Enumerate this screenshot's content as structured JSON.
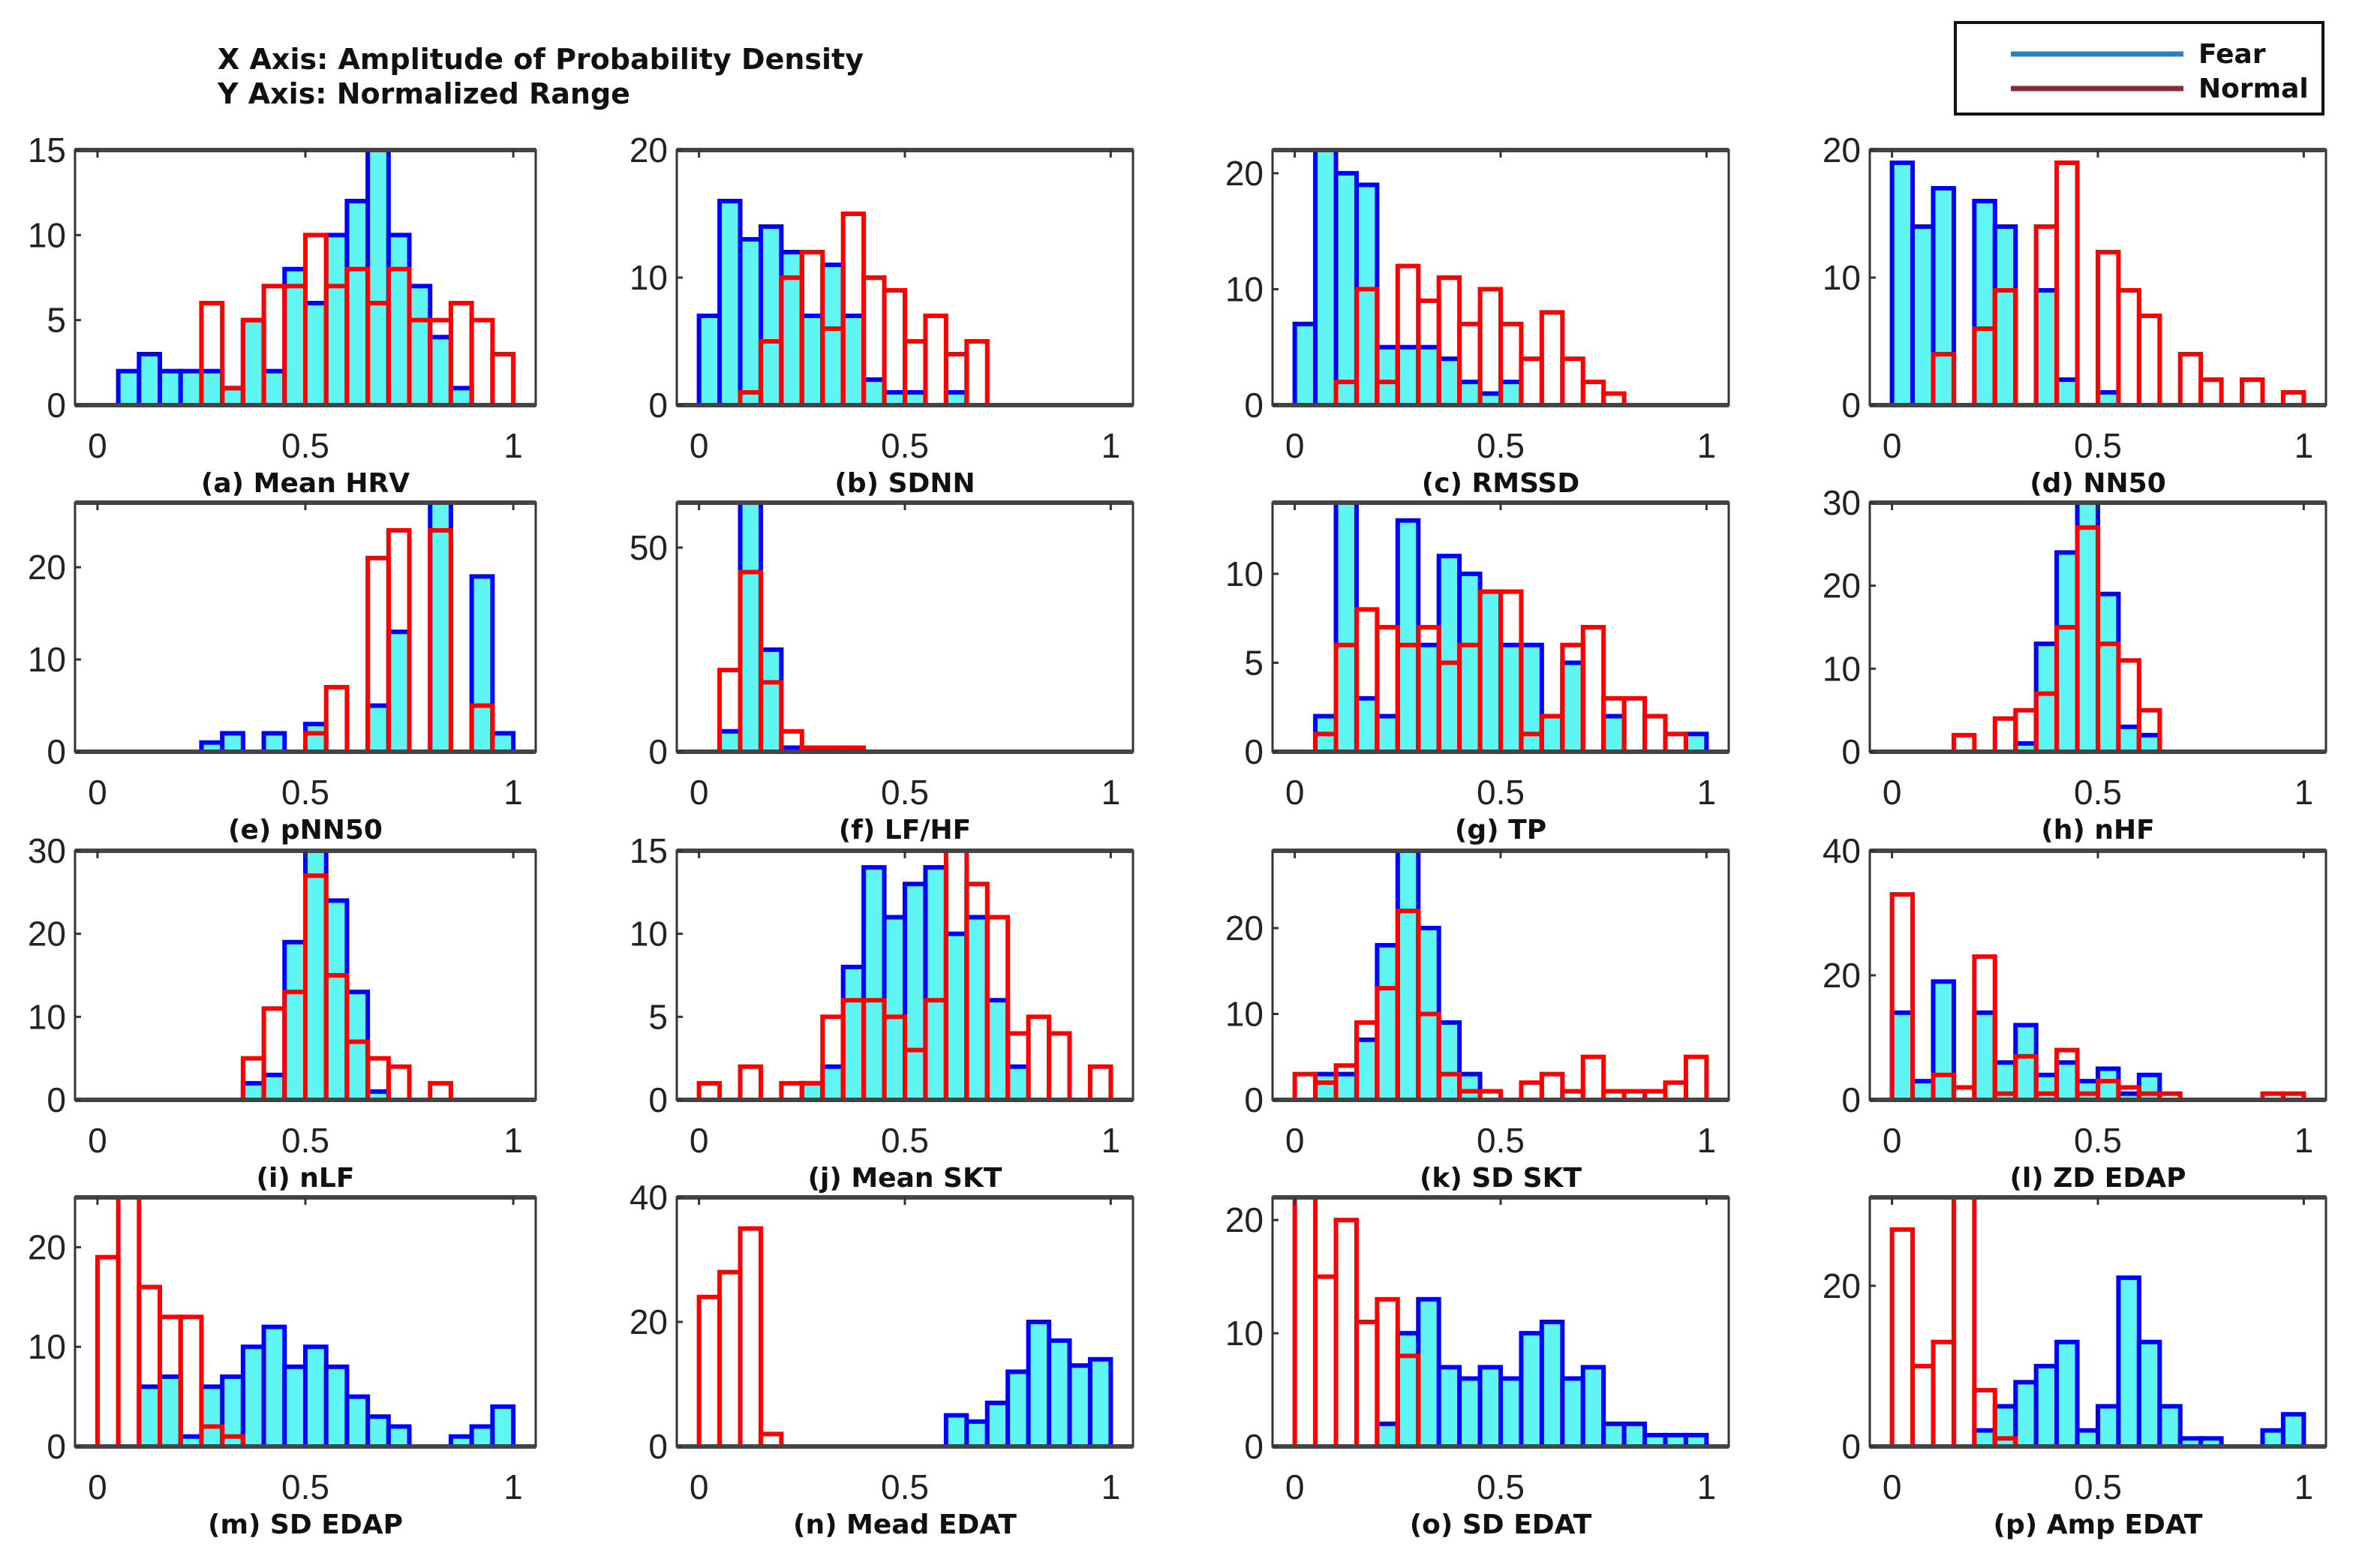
{
  "header": {
    "x_axis_note": "X Axis: Amplitude of Probability Density",
    "y_axis_note": "Y Axis: Normalized Range"
  },
  "legend": [
    {
      "label": "Fear",
      "color": "#2a7fc0"
    },
    {
      "label": "Normal",
      "color": "#8e2a35"
    }
  ],
  "colors": {
    "fear_fill": "#5ff5f2",
    "fear_edge": "#0000ff",
    "normal_edge": "#ff0000"
  },
  "chart_data": [
    {
      "type": "bar",
      "title": "(a) Mean HRV",
      "bins": 20,
      "xlim": [
        0,
        1
      ],
      "xticks": [
        "0",
        "0.5",
        "1"
      ],
      "ylim": [
        0,
        15
      ],
      "yticks": [
        0,
        5,
        10,
        15
      ],
      "series": [
        {
          "name": "Fear",
          "values": [
            0,
            2,
            3,
            2,
            2,
            2,
            1,
            5,
            2,
            8,
            6,
            10,
            12,
            15,
            10,
            7,
            4,
            1,
            0,
            0
          ]
        },
        {
          "name": "Normal",
          "values": [
            0,
            0,
            0,
            0,
            0,
            6,
            1,
            5,
            7,
            7,
            10,
            7,
            8,
            6,
            8,
            5,
            5,
            6,
            5,
            3
          ]
        }
      ]
    },
    {
      "type": "bar",
      "title": "(b) SDNN",
      "bins": 20,
      "xlim": [
        0,
        1
      ],
      "xticks": [
        "0",
        "0.5",
        "1"
      ],
      "ylim": [
        0,
        20
      ],
      "yticks": [
        0,
        10,
        20
      ],
      "series": [
        {
          "name": "Fear",
          "values": [
            7,
            16,
            13,
            14,
            12,
            7,
            11,
            7,
            2,
            1,
            1,
            0,
            1,
            0,
            0,
            0,
            0,
            0,
            0,
            0
          ]
        },
        {
          "name": "Normal",
          "values": [
            0,
            0,
            1,
            5,
            10,
            12,
            6,
            15,
            10,
            9,
            5,
            7,
            4,
            5,
            0,
            0,
            0,
            0,
            0,
            0
          ]
        }
      ]
    },
    {
      "type": "bar",
      "title": "(c) RMSSD",
      "bins": 20,
      "xlim": [
        0,
        1
      ],
      "xticks": [
        "0",
        "0.5",
        "1"
      ],
      "ylim": [
        0,
        22
      ],
      "yticks": [
        0,
        10,
        20
      ],
      "series": [
        {
          "name": "Fear",
          "values": [
            7,
            22,
            20,
            19,
            5,
            5,
            5,
            4,
            2,
            1,
            2,
            0,
            0,
            0,
            0,
            0,
            0,
            0,
            0,
            0
          ]
        },
        {
          "name": "Normal",
          "values": [
            0,
            0,
            2,
            10,
            2,
            12,
            9,
            11,
            7,
            10,
            7,
            4,
            8,
            4,
            2,
            1,
            0,
            0,
            0,
            0
          ]
        }
      ]
    },
    {
      "type": "bar",
      "title": "(d) NN50",
      "bins": 20,
      "xlim": [
        0,
        1
      ],
      "xticks": [
        "0",
        "0.5",
        "1"
      ],
      "ylim": [
        0,
        20
      ],
      "yticks": [
        0,
        10,
        20
      ],
      "series": [
        {
          "name": "Fear",
          "values": [
            19,
            14,
            17,
            0,
            16,
            14,
            0,
            9,
            2,
            0,
            1,
            0,
            0,
            0,
            0,
            0,
            0,
            0,
            0,
            0
          ]
        },
        {
          "name": "Normal",
          "values": [
            0,
            0,
            4,
            0,
            6,
            9,
            0,
            14,
            19,
            0,
            12,
            9,
            7,
            0,
            4,
            2,
            0,
            2,
            0,
            1
          ]
        }
      ]
    },
    {
      "type": "bar",
      "title": "(e) pNN50",
      "bins": 20,
      "xlim": [
        0,
        1
      ],
      "xticks": [
        "0",
        "0.5",
        "1"
      ],
      "ylim": [
        0,
        27
      ],
      "yticks": [
        0,
        10,
        20
      ],
      "series": [
        {
          "name": "Fear",
          "values": [
            0,
            0,
            0,
            0,
            0,
            1,
            2,
            0,
            2,
            0,
            3,
            0,
            0,
            5,
            13,
            0,
            27,
            0,
            19,
            2
          ]
        },
        {
          "name": "Normal",
          "values": [
            0,
            0,
            0,
            0,
            0,
            0,
            0,
            0,
            0,
            0,
            2,
            7,
            0,
            21,
            24,
            0,
            24,
            0,
            5,
            0
          ]
        }
      ]
    },
    {
      "type": "bar",
      "title": "(f) LF/HF",
      "bins": 20,
      "xlim": [
        0,
        1
      ],
      "xticks": [
        "0",
        "0.5",
        "1"
      ],
      "ylim": [
        0,
        61
      ],
      "yticks": [
        0,
        50
      ],
      "series": [
        {
          "name": "Fear",
          "values": [
            0,
            5,
            61,
            25,
            1,
            0,
            0,
            0,
            0,
            0,
            0,
            0,
            0,
            0,
            0,
            0,
            0,
            0,
            0,
            0
          ]
        },
        {
          "name": "Normal",
          "values": [
            0,
            20,
            44,
            17,
            5,
            1,
            1,
            1,
            0,
            0,
            0,
            0,
            0,
            0,
            0,
            0,
            0,
            0,
            0,
            0
          ]
        }
      ]
    },
    {
      "type": "bar",
      "title": "(g) TP",
      "bins": 20,
      "xlim": [
        0,
        1
      ],
      "xticks": [
        "0",
        "0.5",
        "1"
      ],
      "ylim": [
        0,
        14
      ],
      "yticks": [
        0,
        5,
        10
      ],
      "series": [
        {
          "name": "Fear",
          "values": [
            0,
            2,
            14,
            3,
            2,
            13,
            6,
            11,
            10,
            9,
            6,
            6,
            2,
            5,
            0,
            2,
            0,
            0,
            0,
            1
          ]
        },
        {
          "name": "Normal",
          "values": [
            0,
            1,
            6,
            8,
            7,
            6,
            7,
            5,
            6,
            9,
            9,
            1,
            2,
            6,
            7,
            3,
            3,
            2,
            1,
            0
          ]
        }
      ]
    },
    {
      "type": "bar",
      "title": "(h) nHF",
      "bins": 20,
      "xlim": [
        0,
        1
      ],
      "xticks": [
        "0",
        "0.5",
        "1"
      ],
      "ylim": [
        0,
        30
      ],
      "yticks": [
        0,
        10,
        20,
        30
      ],
      "series": [
        {
          "name": "Fear",
          "values": [
            0,
            0,
            0,
            0,
            0,
            0,
            1,
            13,
            24,
            30,
            19,
            3,
            2,
            0,
            0,
            0,
            0,
            0,
            0,
            0
          ]
        },
        {
          "name": "Normal",
          "values": [
            0,
            0,
            0,
            2,
            0,
            4,
            5,
            7,
            15,
            27,
            13,
            11,
            5,
            0,
            0,
            0,
            0,
            0,
            0,
            0
          ]
        }
      ]
    },
    {
      "type": "bar",
      "title": "(i) nLF",
      "bins": 20,
      "xlim": [
        0,
        1
      ],
      "xticks": [
        "0",
        "0.5",
        "1"
      ],
      "ylim": [
        0,
        30
      ],
      "yticks": [
        0,
        10,
        20,
        30
      ],
      "series": [
        {
          "name": "Fear",
          "values": [
            0,
            0,
            0,
            0,
            0,
            0,
            0,
            2,
            3,
            19,
            30,
            24,
            13,
            1,
            0,
            0,
            0,
            0,
            0,
            0
          ]
        },
        {
          "name": "Normal",
          "values": [
            0,
            0,
            0,
            0,
            0,
            0,
            0,
            5,
            11,
            13,
            27,
            15,
            7,
            5,
            4,
            0,
            2,
            0,
            0,
            0
          ]
        }
      ]
    },
    {
      "type": "bar",
      "title": "(j) Mean SKT",
      "bins": 20,
      "xlim": [
        0,
        1
      ],
      "xticks": [
        "0",
        "0.5",
        "1"
      ],
      "ylim": [
        0,
        15
      ],
      "yticks": [
        0,
        5,
        10,
        15
      ],
      "series": [
        {
          "name": "Fear",
          "values": [
            0,
            0,
            0,
            0,
            0,
            1,
            2,
            8,
            14,
            11,
            13,
            14,
            10,
            11,
            6,
            2,
            0,
            0,
            0,
            0
          ]
        },
        {
          "name": "Normal",
          "values": [
            1,
            0,
            2,
            0,
            1,
            1,
            5,
            6,
            6,
            5,
            3,
            6,
            15,
            13,
            11,
            4,
            5,
            4,
            0,
            2
          ]
        }
      ]
    },
    {
      "type": "bar",
      "title": "(k) SD SKT",
      "bins": 20,
      "xlim": [
        0,
        1
      ],
      "xticks": [
        "0",
        "0.5",
        "1"
      ],
      "ylim": [
        0,
        29
      ],
      "yticks": [
        0,
        10,
        20
      ],
      "series": [
        {
          "name": "Fear",
          "values": [
            0,
            3,
            3,
            7,
            18,
            29,
            20,
            9,
            3,
            0,
            0,
            0,
            0,
            0,
            0,
            0,
            0,
            0,
            0,
            0
          ]
        },
        {
          "name": "Normal",
          "values": [
            3,
            2,
            4,
            9,
            13,
            22,
            10,
            3,
            1,
            1,
            0,
            2,
            3,
            1,
            5,
            1,
            1,
            1,
            2,
            5
          ]
        }
      ]
    },
    {
      "type": "bar",
      "title": "(l) ZD EDAP",
      "bins": 20,
      "xlim": [
        0,
        1
      ],
      "xticks": [
        "0",
        "0.5",
        "1"
      ],
      "ylim": [
        0,
        40
      ],
      "yticks": [
        0,
        20,
        40
      ],
      "series": [
        {
          "name": "Fear",
          "values": [
            14,
            3,
            19,
            0,
            14,
            6,
            12,
            4,
            6,
            3,
            5,
            1,
            4,
            0,
            0,
            0,
            0,
            0,
            0,
            0
          ]
        },
        {
          "name": "Normal",
          "values": [
            33,
            0,
            4,
            2,
            23,
            1,
            7,
            1,
            8,
            1,
            3,
            2,
            1,
            1,
            0,
            0,
            0,
            0,
            1,
            1
          ]
        }
      ]
    },
    {
      "type": "bar",
      "title": "(m) SD EDAP",
      "bins": 20,
      "xlim": [
        0,
        1
      ],
      "xticks": [
        "0",
        "0.5",
        "1"
      ],
      "ylim": [
        0,
        25
      ],
      "yticks": [
        0,
        10,
        20
      ],
      "series": [
        {
          "name": "Fear",
          "values": [
            0,
            0,
            6,
            7,
            1,
            6,
            7,
            10,
            12,
            8,
            10,
            8,
            5,
            3,
            2,
            0,
            0,
            1,
            2,
            4
          ]
        },
        {
          "name": "Normal",
          "values": [
            19,
            25,
            16,
            13,
            13,
            2,
            1,
            0,
            0,
            0,
            0,
            0,
            0,
            0,
            0,
            0,
            0,
            0,
            0,
            0
          ]
        }
      ]
    },
    {
      "type": "bar",
      "title": "(n) Mead EDAT",
      "bins": 20,
      "xlim": [
        0,
        1
      ],
      "xticks": [
        "0",
        "0.5",
        "1"
      ],
      "ylim": [
        0,
        40
      ],
      "yticks": [
        0,
        20,
        40
      ],
      "series": [
        {
          "name": "Fear",
          "values": [
            0,
            0,
            0,
            0,
            0,
            0,
            0,
            0,
            0,
            0,
            0,
            0,
            5,
            4,
            7,
            12,
            20,
            17,
            13,
            14
          ]
        },
        {
          "name": "Normal",
          "values": [
            24,
            28,
            35,
            2,
            0,
            0,
            0,
            0,
            0,
            0,
            0,
            0,
            0,
            0,
            0,
            0,
            0,
            0,
            0,
            0
          ]
        }
      ]
    },
    {
      "type": "bar",
      "title": "(o) SD EDAT",
      "bins": 20,
      "xlim": [
        0,
        1
      ],
      "xticks": [
        "0",
        "0.5",
        "1"
      ],
      "ylim": [
        0,
        22
      ],
      "yticks": [
        0,
        10,
        20
      ],
      "series": [
        {
          "name": "Fear",
          "values": [
            0,
            0,
            0,
            0,
            2,
            10,
            13,
            7,
            6,
            7,
            6,
            10,
            11,
            6,
            7,
            2,
            2,
            1,
            1,
            1
          ]
        },
        {
          "name": "Normal",
          "values": [
            22,
            15,
            20,
            11,
            13,
            8,
            0,
            0,
            0,
            0,
            0,
            0,
            0,
            0,
            0,
            0,
            0,
            0,
            0,
            0
          ]
        }
      ]
    },
    {
      "type": "bar",
      "title": "(p) Amp EDAT",
      "bins": 20,
      "xlim": [
        0,
        1
      ],
      "xticks": [
        "0",
        "0.5",
        "1"
      ],
      "ylim": [
        0,
        31
      ],
      "yticks": [
        0,
        20
      ],
      "series": [
        {
          "name": "Fear",
          "values": [
            0,
            0,
            0,
            0,
            2,
            5,
            8,
            10,
            13,
            2,
            5,
            21,
            13,
            5,
            1,
            1,
            0,
            0,
            2,
            4
          ]
        },
        {
          "name": "Normal",
          "values": [
            27,
            10,
            13,
            31,
            7,
            1,
            0,
            0,
            0,
            0,
            0,
            0,
            0,
            0,
            0,
            0,
            0,
            0,
            0,
            0
          ]
        }
      ]
    }
  ]
}
